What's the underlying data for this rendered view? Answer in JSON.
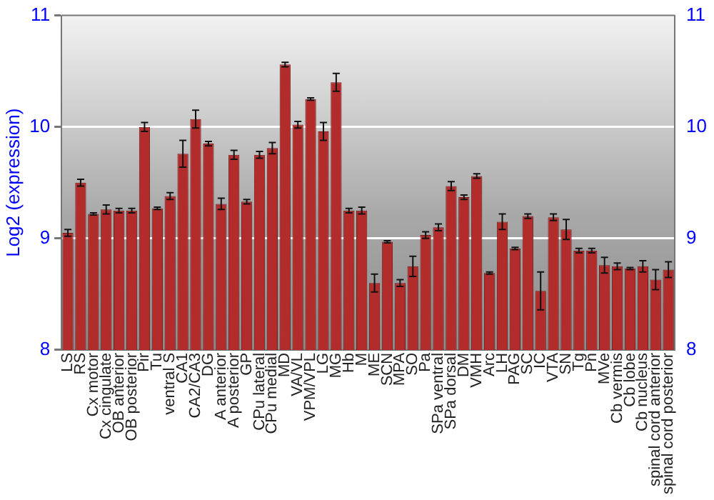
{
  "chart_data": {
    "type": "bar",
    "ylabel": "Log2 (expression)",
    "categories": [
      "LS",
      "RS",
      "Cx motor",
      "Cx cingulate",
      "OB anterior",
      "OB posterior",
      "Pir",
      "Tu",
      "ventral S",
      "CA1",
      "CA2/CA3",
      "DG",
      "A anterior",
      "A posterior",
      "GP",
      "CPu lateral",
      "CPu medial",
      "MD",
      "VA/VL",
      "VPM/VPL",
      "LG",
      "MG",
      "Hb",
      "M",
      "ME",
      "SCN",
      "MPA",
      "SO",
      "Pa",
      "SPa ventral",
      "SPa dorsal",
      "DM",
      "VMH",
      "Arc",
      "LH",
      "PAG",
      "SC",
      "IC",
      "VTA",
      "SN",
      "Tg",
      "Pn",
      "MVe",
      "Cb vermis",
      "Cb lobe",
      "Cb nucleus",
      "spinal cord anterior",
      "spinal cord posterior"
    ],
    "values": [
      9.05,
      9.5,
      9.22,
      9.26,
      9.25,
      9.25,
      10.0,
      9.27,
      9.38,
      9.76,
      10.07,
      9.85,
      9.31,
      9.75,
      9.33,
      9.75,
      9.81,
      10.56,
      10.02,
      10.25,
      9.96,
      10.4,
      9.25,
      9.25,
      8.6,
      8.97,
      8.6,
      8.75,
      9.03,
      9.1,
      9.47,
      9.37,
      9.56,
      8.69,
      9.15,
      8.91,
      9.2,
      8.53,
      9.19,
      9.08,
      8.89,
      8.89,
      8.76,
      8.75,
      8.73,
      8.75,
      8.63,
      8.72
    ],
    "errors": [
      0.03,
      0.03,
      0.01,
      0.04,
      0.02,
      0.02,
      0.04,
      0.01,
      0.03,
      0.12,
      0.08,
      0.02,
      0.05,
      0.04,
      0.02,
      0.03,
      0.05,
      0.02,
      0.03,
      0.01,
      0.08,
      0.08,
      0.02,
      0.03,
      0.08,
      0.01,
      0.03,
      0.09,
      0.03,
      0.03,
      0.04,
      0.02,
      0.02,
      0.01,
      0.07,
      0.01,
      0.02,
      0.17,
      0.03,
      0.09,
      0.02,
      0.02,
      0.07,
      0.03,
      0.01,
      0.05,
      0.09,
      0.07
    ],
    "color": "#b22c2c",
    "ylim": [
      8,
      11
    ],
    "yticks": [
      8,
      9,
      10,
      11
    ],
    "y2lim": [
      8,
      11
    ],
    "y2ticks": [
      8,
      9,
      10,
      11
    ],
    "grid": "y"
  }
}
